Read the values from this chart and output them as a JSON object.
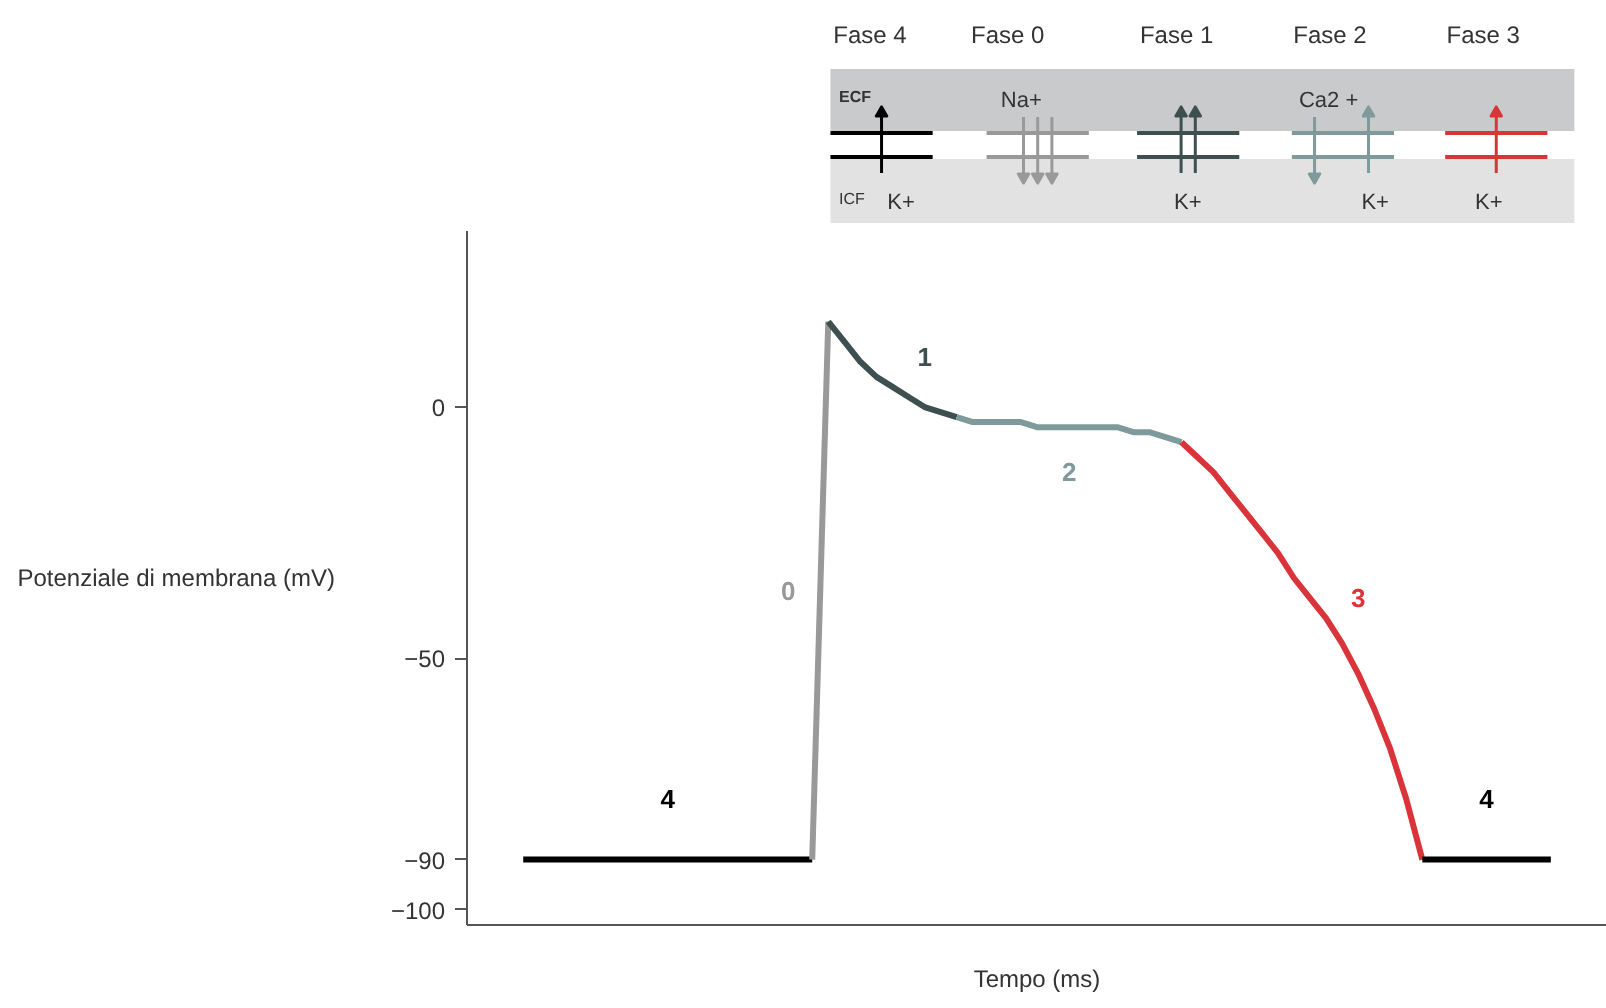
{
  "chart_data": {
    "type": "line",
    "ylabel": "Potenziale di membrana (mV)",
    "xlabel": "Tempo (ms)",
    "categories": [
      null,
      null,
      null,
      null,
      null,
      null,
      null,
      null,
      null,
      null,
      null,
      null,
      null,
      null,
      null,
      null,
      null,
      null,
      null,
      null,
      null,
      null,
      null,
      null,
      null,
      null,
      null,
      null,
      null,
      null,
      null,
      null,
      null,
      null,
      null,
      null,
      null,
      null,
      null,
      null,
      null,
      null,
      null,
      null,
      null,
      null,
      null,
      null,
      null,
      null,
      null,
      null,
      null,
      null,
      null,
      null,
      null,
      null,
      null,
      null,
      null,
      null,
      null,
      null,
      null,
      null,
      null,
      null,
      null,
      null,
      null
    ],
    "ylim": [
      -103,
      35
    ],
    "yticks": [
      0,
      {
        "value": -50,
        "label": "−50"
      },
      {
        "value": -90,
        "label": "−90"
      },
      {
        "value": -100,
        "label": "−100"
      }
    ],
    "grid": false,
    "legend": false,
    "tick_labels": "y",
    "marker": "none",
    "line_style": "solid",
    "series": [
      {
        "name": "4",
        "color": "#000000",
        "values": [
          null,
          null,
          null,
          -90,
          -90,
          -90,
          -90,
          -90,
          -90,
          -90,
          -90,
          -90,
          -90,
          -90,
          -90,
          -90,
          -90,
          -90,
          -90,
          -90,
          -90,
          -90,
          null,
          null,
          null,
          null,
          null,
          null,
          null,
          null,
          null,
          null,
          null,
          null,
          null,
          null,
          null,
          null,
          null,
          null,
          null,
          null,
          null,
          null,
          null,
          null,
          null,
          null,
          null,
          null,
          null,
          null,
          null,
          null,
          null,
          null,
          null,
          null,
          null,
          null,
          null,
          null,
          null,
          null,
          null,
          null,
          null,
          null,
          null,
          null,
          null
        ]
      },
      {
        "name": "0",
        "color": "#999999",
        "values": [
          null,
          null,
          null,
          null,
          null,
          null,
          null,
          null,
          null,
          null,
          null,
          null,
          null,
          null,
          null,
          null,
          null,
          null,
          null,
          null,
          null,
          -90,
          17,
          null,
          null,
          null,
          null,
          null,
          null,
          null,
          null,
          null,
          null,
          null,
          null,
          null,
          null,
          null,
          null,
          null,
          null,
          null,
          null,
          null,
          null,
          null,
          null,
          null,
          null,
          null,
          null,
          null,
          null,
          null,
          null,
          null,
          null,
          null,
          null,
          null,
          null,
          null,
          null,
          null,
          null,
          null,
          null,
          null,
          null,
          null,
          null
        ]
      },
      {
        "name": "1",
        "color": "#3d4f4f",
        "values": [
          null,
          null,
          null,
          null,
          null,
          null,
          null,
          null,
          null,
          null,
          null,
          null,
          null,
          null,
          null,
          null,
          null,
          null,
          null,
          null,
          null,
          null,
          17,
          13,
          9,
          6,
          4,
          2,
          0,
          -1,
          -2,
          null,
          null,
          null,
          null,
          null,
          null,
          null,
          null,
          null,
          null,
          null,
          null,
          null,
          null,
          null,
          null,
          null,
          null,
          null,
          null,
          null,
          null,
          null,
          null,
          null,
          null,
          null,
          null,
          null,
          null,
          null,
          null,
          null,
          null,
          null,
          null,
          null,
          null,
          null,
          null
        ]
      },
      {
        "name": "2",
        "color": "#7f9a9a",
        "values": [
          null,
          null,
          null,
          null,
          null,
          null,
          null,
          null,
          null,
          null,
          null,
          null,
          null,
          null,
          null,
          null,
          null,
          null,
          null,
          null,
          null,
          null,
          null,
          null,
          null,
          null,
          null,
          null,
          null,
          null,
          -2,
          -3,
          -3,
          -3,
          -3,
          -4,
          -4,
          -4,
          -4,
          -4,
          -4,
          -5,
          -5,
          -6,
          -7,
          null,
          null,
          null,
          null,
          null,
          null,
          null,
          null,
          null,
          null,
          null,
          null,
          null,
          null,
          null,
          null,
          null,
          null,
          null,
          null,
          null,
          null,
          null,
          null,
          null,
          null
        ]
      },
      {
        "name": "3",
        "color": "#d9343a",
        "values": [
          null,
          null,
          null,
          null,
          null,
          null,
          null,
          null,
          null,
          null,
          null,
          null,
          null,
          null,
          null,
          null,
          null,
          null,
          null,
          null,
          null,
          null,
          null,
          null,
          null,
          null,
          null,
          null,
          null,
          null,
          null,
          null,
          null,
          null,
          null,
          null,
          null,
          null,
          null,
          null,
          null,
          null,
          null,
          null,
          -7,
          -10,
          -13,
          -17,
          -21,
          -25,
          -29,
          -34,
          -38,
          -42,
          -47,
          -53,
          -60,
          -68,
          -78,
          -90,
          null,
          null,
          null,
          null,
          null,
          null,
          null,
          null,
          null,
          null,
          null
        ]
      },
      {
        "name": "4",
        "color": "#000000",
        "values": [
          null,
          null,
          null,
          null,
          null,
          null,
          null,
          null,
          null,
          null,
          null,
          null,
          null,
          null,
          null,
          null,
          null,
          null,
          null,
          null,
          null,
          null,
          null,
          null,
          null,
          null,
          null,
          null,
          null,
          null,
          null,
          null,
          null,
          null,
          null,
          null,
          null,
          null,
          null,
          null,
          null,
          null,
          null,
          null,
          null,
          null,
          null,
          null,
          null,
          null,
          null,
          null,
          null,
          null,
          null,
          null,
          null,
          null,
          null,
          -90,
          -90,
          -90,
          -90,
          -90,
          -90,
          -90,
          -90,
          -90,
          null,
          null,
          null
        ]
      }
    ],
    "annotations": [
      "Fase 4",
      "Fase 0",
      "Fase 1",
      "Fase 2",
      "Fase 3",
      "ECF",
      "ICF",
      "Na+",
      "Ca2 +",
      "K+",
      "K+",
      "K+",
      "K+"
    ]
  }
}
